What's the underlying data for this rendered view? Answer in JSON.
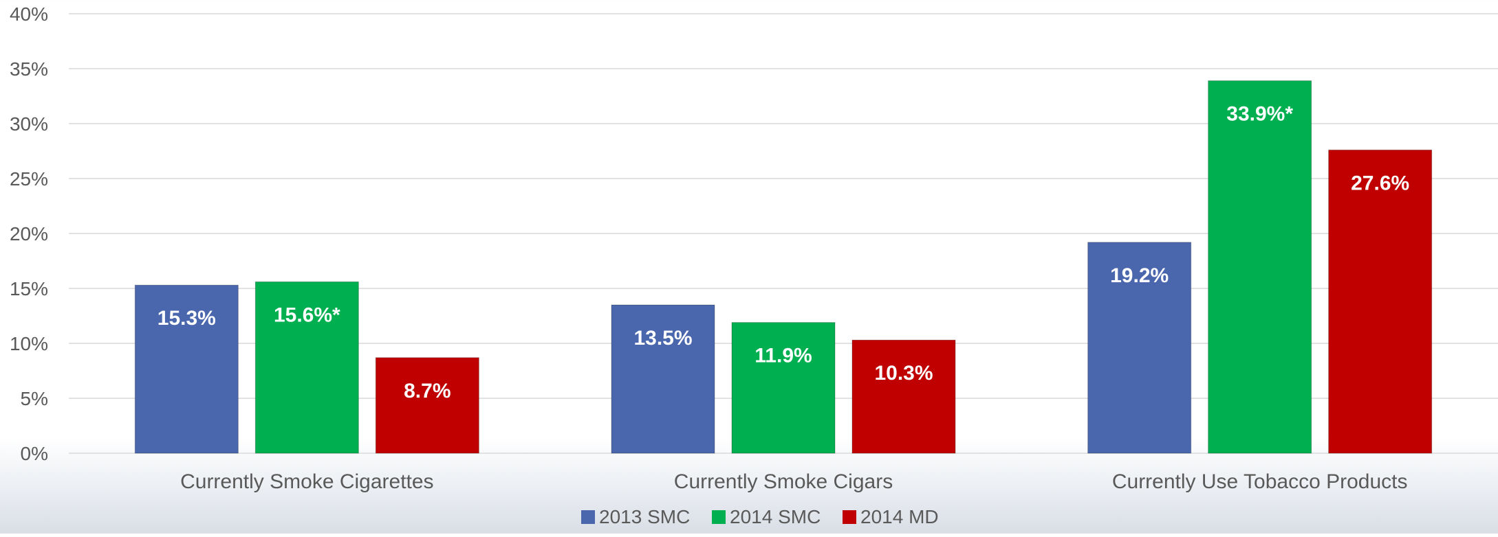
{
  "chart_data": {
    "type": "bar",
    "title": "",
    "xlabel": "",
    "ylabel": "",
    "categories": [
      "Currently Smoke Cigarettes",
      "Currently Smoke Cigars",
      "Currently Use Tobacco Products"
    ],
    "series": [
      {
        "name": "2013 SMC",
        "color": "#4a66ad",
        "values": [
          15.3,
          13.5,
          19.2
        ],
        "labels": [
          "15.3%",
          "13.5%",
          "19.2%"
        ]
      },
      {
        "name": "2014 SMC",
        "color": "#00b050",
        "values": [
          15.6,
          11.9,
          33.9
        ],
        "labels": [
          "15.6%*",
          "11.9%",
          "33.9%*"
        ]
      },
      {
        "name": "2014 MD",
        "color": "#c00000",
        "values": [
          8.7,
          10.3,
          27.6
        ],
        "labels": [
          "8.7%",
          "10.3%",
          "27.6%"
        ]
      }
    ],
    "ylim": [
      0,
      40
    ],
    "yticks": [
      0,
      5,
      10,
      15,
      20,
      25,
      30,
      35,
      40
    ],
    "ytick_labels": [
      "0%",
      "5%",
      "10%",
      "15%",
      "20%",
      "25%",
      "30%",
      "35%",
      "40%"
    ],
    "grid": true,
    "legend_position": "bottom"
  }
}
